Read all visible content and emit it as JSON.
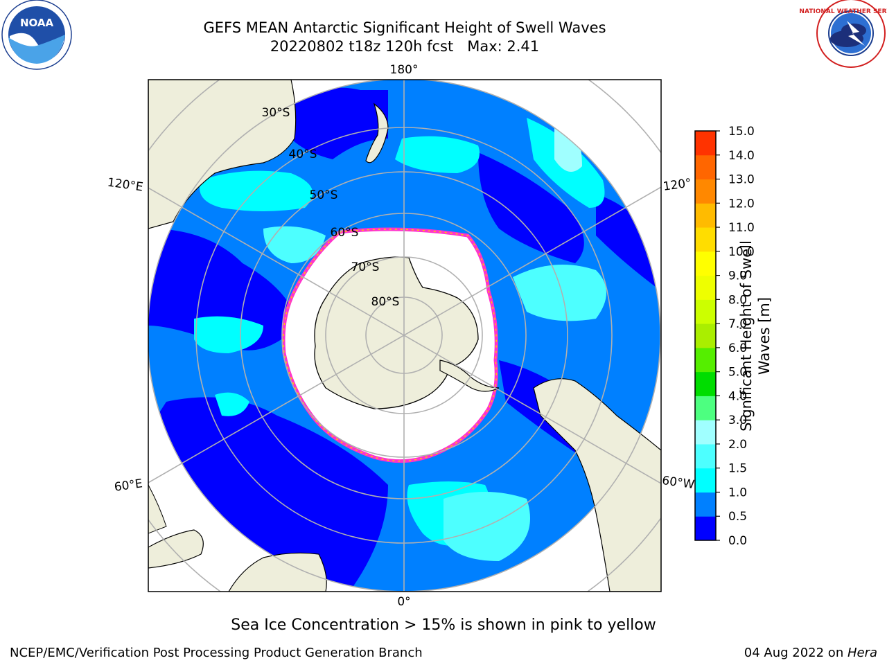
{
  "title_line1": "GEFS MEAN Antarctic Significant Height of Swell Waves",
  "title_line2": "20220802 t18z 120h fcst   Max: 2.41",
  "logos": {
    "left": "noaa-logo-icon",
    "right": "nws-logo-icon",
    "noaa_text": "NOAA",
    "nws_ring_text": "NATIONAL WEATHER SERVICE"
  },
  "map": {
    "projection": "south-polar-stereographic",
    "lon_labels": {
      "top": "180°",
      "bottom": "0°",
      "left_upper": "120°E",
      "left_lower": "60°E",
      "right_upper": "120°",
      "right_lower": "60°W"
    },
    "lat_labels": [
      "30°S",
      "40°S",
      "50°S",
      "60°S",
      "70°S",
      "80°S"
    ],
    "colors": {
      "land": "#eeeedb",
      "ocean_low": "#0000ff",
      "ocean_mid": "#0080ff",
      "ocean_high": "#00ffff",
      "ice": "#ffffff",
      "ice_edge": "#ff33cc"
    }
  },
  "colorbar": {
    "label": "Significant Height of Swell Waves [m]",
    "ticks": [
      "0.0",
      "0.5",
      "1.0",
      "1.5",
      "2.0",
      "3.0",
      "4.0",
      "5.0",
      "6.0",
      "7.0",
      "8.0",
      "9.0",
      "10.0",
      "11.0",
      "12.0",
      "13.0",
      "14.0",
      "15.0"
    ],
    "colors": [
      "#0000ff",
      "#0080ff",
      "#00ffff",
      "#4dffff",
      "#a0ffff",
      "#4dff80",
      "#00dd00",
      "#55ee00",
      "#aaee00",
      "#ccff00",
      "#eeff00",
      "#ffff00",
      "#ffdd00",
      "#ffbb00",
      "#ff8800",
      "#ff6600",
      "#ff3300",
      "#ff0000"
    ]
  },
  "caption": "Sea Ice Concentration > 15% is shown in pink to yellow",
  "footer_left": "NCEP/EMC/Verification Post Processing Product Generation Branch",
  "footer_date": "04 Aug 2022 on ",
  "footer_host": "Hera"
}
